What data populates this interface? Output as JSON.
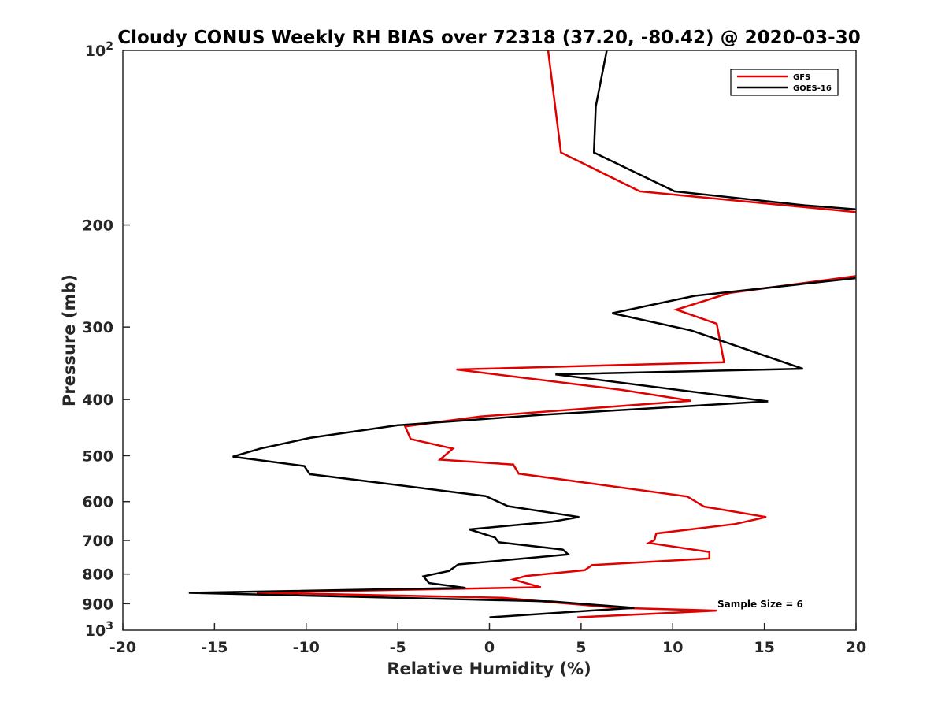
{
  "chart_data": {
    "type": "line",
    "title": "Cloudy CONUS Weekly RH BIAS over 72318 (37.20, -80.42) @ 2020-03-30",
    "xlabel": "Relative Humidity (%)",
    "ylabel": "Pressure (mb)",
    "xlim": [
      -20,
      20
    ],
    "ylim": [
      100,
      1000
    ],
    "yscale": "log",
    "y_reversed": true,
    "xticks": [
      -20,
      -15,
      -10,
      -5,
      0,
      5,
      10,
      15,
      20
    ],
    "xtick_labels": [
      "-20",
      "-15",
      "-10",
      "-5",
      "0",
      "5",
      "10",
      "15",
      "20"
    ],
    "yticks": [
      200,
      300,
      400,
      500,
      600,
      700,
      800,
      900
    ],
    "ytick_labels": [
      "200",
      "300",
      "400",
      "500",
      "600",
      "700",
      "800",
      "900"
    ],
    "ytick_power_labels": [
      {
        "value": 100,
        "base": "10",
        "exp": "2"
      },
      {
        "value": 1000,
        "base": "10",
        "exp": "3"
      }
    ],
    "legend_position": "top-right",
    "annotation": "Sample Size = 6",
    "series": [
      {
        "name": "GFS",
        "color": "#e00000",
        "points": [
          [
            3.2,
            100
          ],
          [
            3.9,
            150
          ],
          [
            8.2,
            175
          ],
          [
            20,
            190
          ],
          [
            null,
            null
          ],
          [
            20,
            245
          ],
          [
            13.1,
            262
          ],
          [
            10.2,
            280
          ],
          [
            12.4,
            296
          ],
          [
            12.8,
            345
          ],
          [
            -1.8,
            355
          ],
          [
            7.2,
            385
          ],
          [
            11.0,
            402
          ],
          [
            -0.5,
            428
          ],
          [
            -4.6,
            445
          ],
          [
            -4.3,
            468
          ],
          [
            -2.0,
            486
          ],
          [
            -2.7,
            508
          ],
          [
            1.3,
            518
          ],
          [
            1.6,
            537
          ],
          [
            10.8,
            588
          ],
          [
            11.7,
            612
          ],
          [
            15.1,
            638
          ],
          [
            13.4,
            656
          ],
          [
            9.1,
            681
          ],
          [
            9.0,
            699
          ],
          [
            8.7,
            707
          ],
          [
            12.0,
            733
          ],
          [
            12.0,
            752
          ],
          [
            5.6,
            772
          ],
          [
            5.2,
            788
          ],
          [
            2.0,
            806
          ],
          [
            1.3,
            817
          ],
          [
            1.8,
            826
          ],
          [
            2.8,
            843
          ],
          [
            -12.7,
            861
          ],
          [
            0.7,
            879
          ],
          [
            3.3,
            894
          ],
          [
            7.0,
            915
          ],
          [
            12.4,
            925
          ],
          [
            4.8,
            950
          ]
        ]
      },
      {
        "name": "GOES-16",
        "color": "#000000",
        "points": [
          [
            6.4,
            100
          ],
          [
            5.8,
            125
          ],
          [
            5.7,
            150
          ],
          [
            10.1,
            175
          ],
          [
            17.2,
            185
          ],
          [
            20,
            188
          ],
          [
            null,
            null
          ],
          [
            20,
            247
          ],
          [
            11.2,
            265
          ],
          [
            6.7,
            284
          ],
          [
            11.0,
            304
          ],
          [
            17.1,
            354
          ],
          [
            3.6,
            362
          ],
          [
            15.2,
            403
          ],
          [
            2.9,
            425
          ],
          [
            -5.0,
            443
          ],
          [
            -9.8,
            466
          ],
          [
            -12.5,
            486
          ],
          [
            -14.0,
            502
          ],
          [
            -10.1,
            521
          ],
          [
            -9.8,
            538
          ],
          [
            -0.2,
            587
          ],
          [
            1.0,
            611
          ],
          [
            4.9,
            638
          ],
          [
            3.4,
            650
          ],
          [
            -1.1,
            670
          ],
          [
            0.3,
            692
          ],
          [
            0.5,
            705
          ],
          [
            4.0,
            726
          ],
          [
            4.3,
            740
          ],
          [
            -1.7,
            770
          ],
          [
            -2.2,
            790
          ],
          [
            -3.6,
            807
          ],
          [
            -3.3,
            829
          ],
          [
            -1.3,
            845
          ],
          [
            -16.4,
            862
          ],
          [
            3.4,
            892
          ],
          [
            7.9,
            915
          ],
          [
            5.5,
            925
          ],
          [
            0.0,
            950
          ]
        ]
      }
    ]
  }
}
